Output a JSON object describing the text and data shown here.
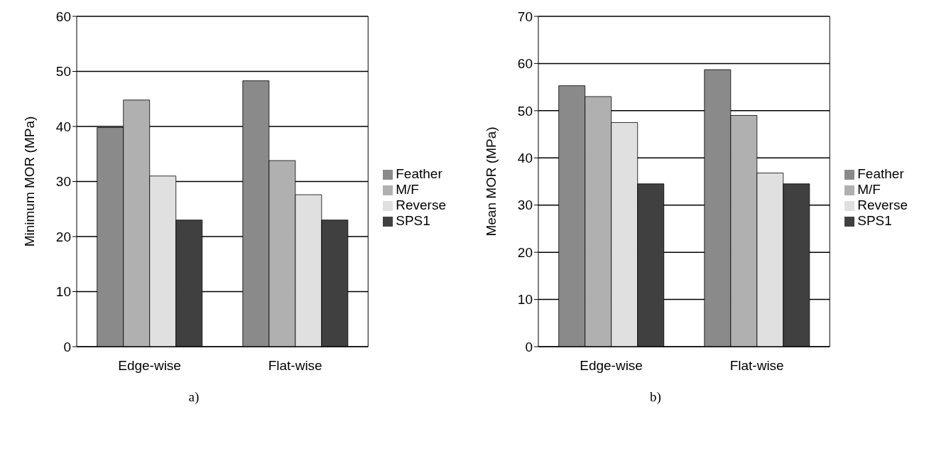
{
  "chart_data": [
    {
      "type": "bar",
      "ylabel": "Minimum MOR (MPa)",
      "categories": [
        "Edge-wise",
        "Flat-wise"
      ],
      "series": [
        {
          "name": "Feather",
          "color": "#8a8a8a",
          "values": [
            39.8,
            48.3
          ]
        },
        {
          "name": "M/F",
          "color": "#b0b0b0",
          "values": [
            44.8,
            33.8
          ]
        },
        {
          "name": "Reverse",
          "color": "#e0e0e0",
          "values": [
            31,
            27.6
          ]
        },
        {
          "name": "SPS1",
          "color": "#404040",
          "values": [
            23,
            23
          ]
        }
      ],
      "ylim": [
        0,
        60
      ],
      "yticks": [
        0,
        10,
        20,
        30,
        40,
        50,
        60
      ],
      "grid": "y",
      "legend": "right",
      "annotations": [
        "a)"
      ]
    },
    {
      "type": "bar",
      "ylabel": "Mean MOR (MPa)",
      "categories": [
        "Edge-wise",
        "Flat-wise"
      ],
      "series": [
        {
          "name": "Feather",
          "color": "#8a8a8a",
          "values": [
            55.3,
            58.7
          ]
        },
        {
          "name": "M/F",
          "color": "#b0b0b0",
          "values": [
            53,
            49
          ]
        },
        {
          "name": "Reverse",
          "color": "#e0e0e0",
          "values": [
            47.5,
            36.8
          ]
        },
        {
          "name": "SPS1",
          "color": "#404040",
          "values": [
            34.5,
            34.5
          ]
        }
      ],
      "ylim": [
        0,
        70
      ],
      "yticks": [
        0,
        10,
        20,
        30,
        40,
        50,
        60,
        70
      ],
      "grid": "y",
      "legend": "right",
      "annotations": [
        "b)"
      ]
    }
  ]
}
